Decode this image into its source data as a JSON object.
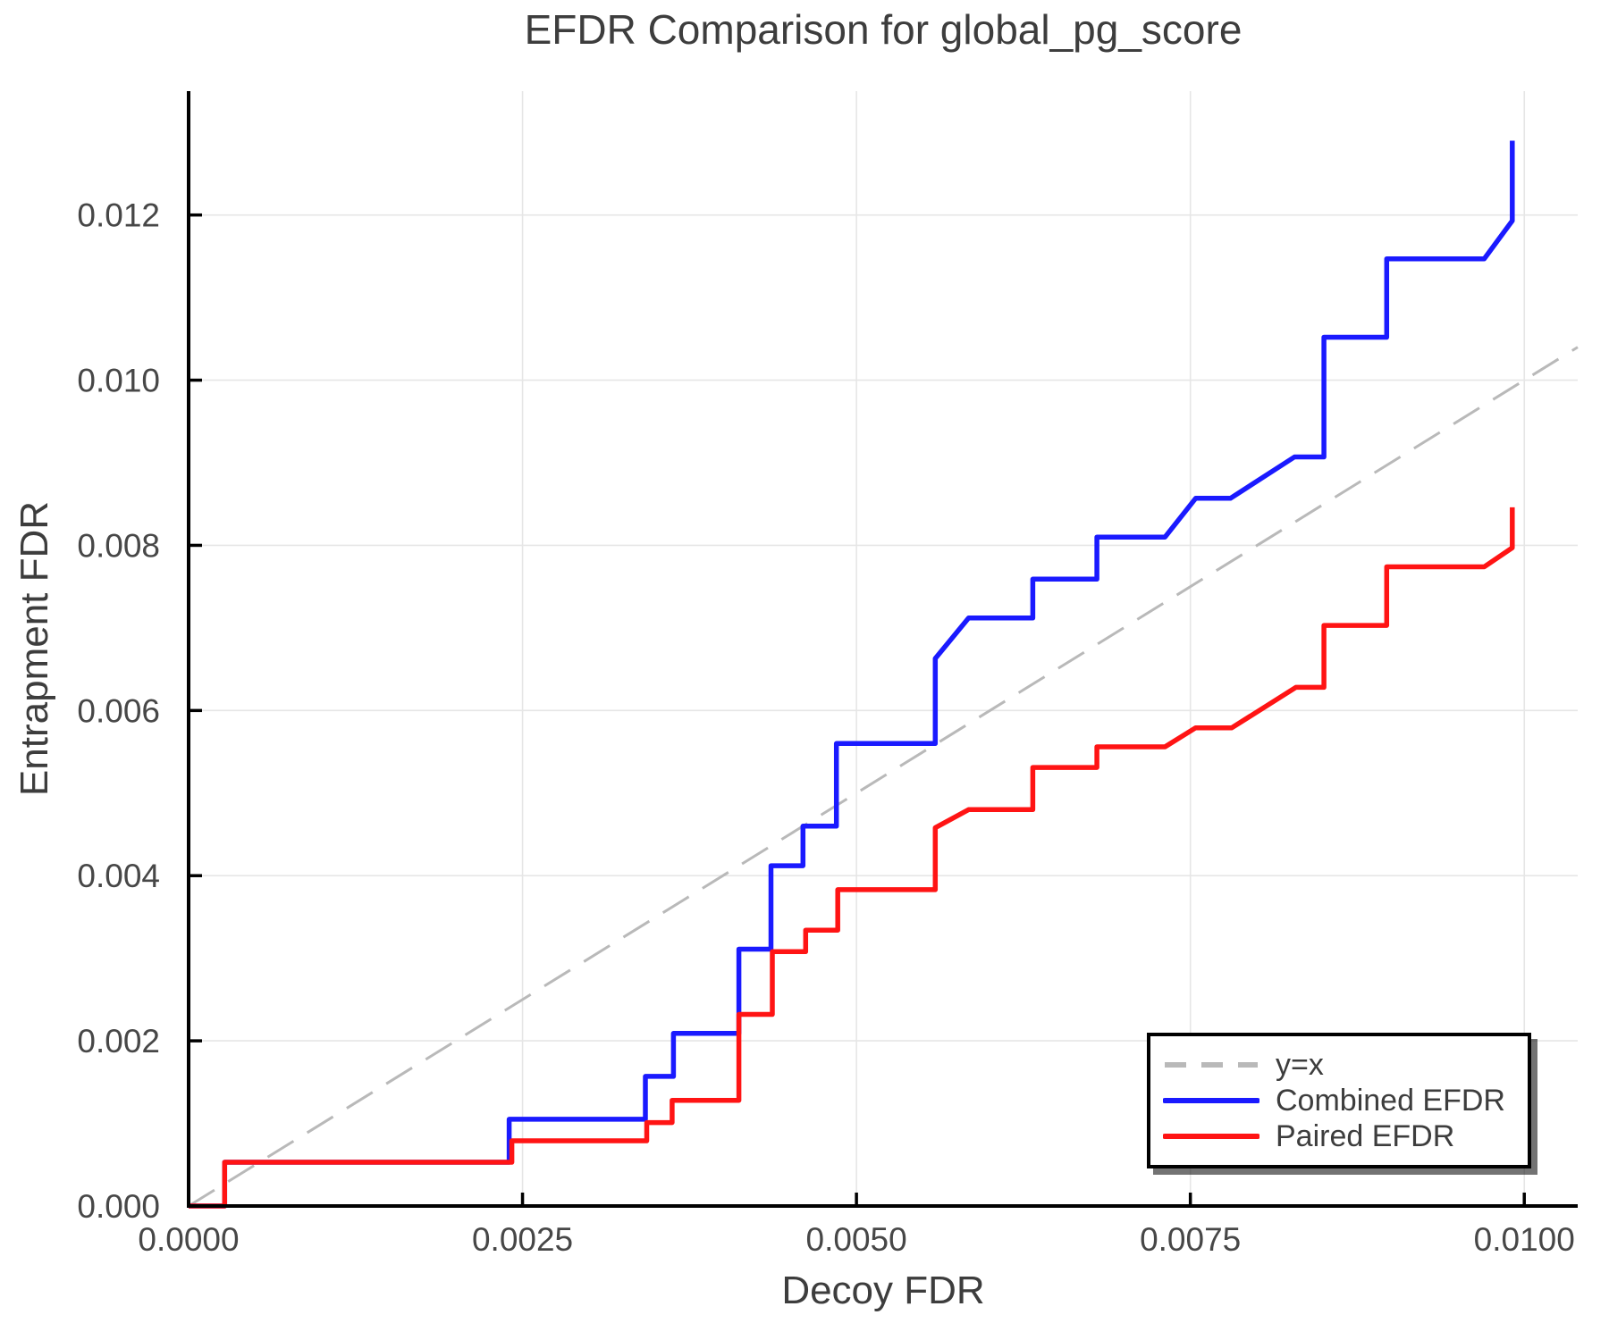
{
  "title": "EFDR Comparison for global_pg_score",
  "axes": {
    "x_label": "Decoy FDR",
    "y_label": "Entrapment FDR",
    "x_ticks": [
      {
        "v": 0.0,
        "label": "0.0000"
      },
      {
        "v": 0.0025,
        "label": "0.0025"
      },
      {
        "v": 0.005,
        "label": "0.0050"
      },
      {
        "v": 0.0075,
        "label": "0.0075"
      },
      {
        "v": 0.01,
        "label": "0.0100"
      }
    ],
    "y_ticks": [
      {
        "v": 0.0,
        "label": "0.000"
      },
      {
        "v": 0.002,
        "label": "0.002"
      },
      {
        "v": 0.004,
        "label": "0.004"
      },
      {
        "v": 0.006,
        "label": "0.006"
      },
      {
        "v": 0.008,
        "label": "0.008"
      },
      {
        "v": 0.01,
        "label": "0.010"
      },
      {
        "v": 0.012,
        "label": "0.012"
      }
    ]
  },
  "colors": {
    "grid": "#e6e6e6",
    "spine": "#000000",
    "title_text": "#3d3d3d",
    "tick_text": "#474747",
    "identity": "#b9b9b9",
    "combined": "#1a1aff",
    "paired": "#ff1414"
  },
  "legend": {
    "entries": [
      {
        "label": "y=x",
        "color": "#b9b9b9",
        "dashed": true
      },
      {
        "label": "Combined EFDR",
        "color": "#1a1aff",
        "dashed": false
      },
      {
        "label": "Paired EFDR",
        "color": "#ff1414",
        "dashed": false
      }
    ],
    "position": "lower right"
  },
  "chart_data": {
    "type": "line",
    "title": "EFDR Comparison for global_pg_score",
    "xlabel": "Decoy FDR",
    "ylabel": "Entrapment FDR",
    "xlim": [
      0.0,
      0.0104
    ],
    "ylim": [
      0.0,
      0.0135
    ],
    "grid": true,
    "legend_position": "lower right",
    "series": [
      {
        "name": "y=x",
        "style": "dashed",
        "color": "#b9b9b9",
        "width": 3,
        "points": [
          [
            0.0,
            0.0
          ],
          [
            0.0104,
            0.0104
          ]
        ]
      },
      {
        "name": "Combined EFDR",
        "style": "solid",
        "color": "#1a1aff",
        "width": 5.5,
        "points": [
          [
            0.0,
            0.0
          ],
          [
            0.00027,
            0.0
          ],
          [
            0.00027,
            0.00053
          ],
          [
            0.0024,
            0.00053
          ],
          [
            0.0024,
            0.00105
          ],
          [
            0.00342,
            0.00105
          ],
          [
            0.00342,
            0.00157
          ],
          [
            0.00363,
            0.00157
          ],
          [
            0.00363,
            0.00209
          ],
          [
            0.00412,
            0.00209
          ],
          [
            0.00412,
            0.00311
          ],
          [
            0.00436,
            0.00311
          ],
          [
            0.00436,
            0.00412
          ],
          [
            0.0046,
            0.00412
          ],
          [
            0.0046,
            0.0046
          ],
          [
            0.00485,
            0.0046
          ],
          [
            0.00485,
            0.0056
          ],
          [
            0.00559,
            0.0056
          ],
          [
            0.00559,
            0.00663
          ],
          [
            0.00584,
            0.00712
          ],
          [
            0.00632,
            0.00712
          ],
          [
            0.00632,
            0.00759
          ],
          [
            0.0068,
            0.00759
          ],
          [
            0.0068,
            0.0081
          ],
          [
            0.00731,
            0.0081
          ],
          [
            0.00754,
            0.00857
          ],
          [
            0.0078,
            0.00857
          ],
          [
            0.00828,
            0.00907
          ],
          [
            0.0085,
            0.00907
          ],
          [
            0.0085,
            0.01052
          ],
          [
            0.00897,
            0.01052
          ],
          [
            0.00897,
            0.01147
          ],
          [
            0.0097,
            0.01147
          ],
          [
            0.00991,
            0.01193
          ],
          [
            0.00991,
            0.0129
          ]
        ]
      },
      {
        "name": "Paired EFDR",
        "style": "solid",
        "color": "#ff1414",
        "width": 5.5,
        "points": [
          [
            0.0,
            0.0
          ],
          [
            0.00027,
            0.0
          ],
          [
            0.00027,
            0.00053
          ],
          [
            0.00242,
            0.00053
          ],
          [
            0.00242,
            0.00079
          ],
          [
            0.00343,
            0.00079
          ],
          [
            0.00343,
            0.00101
          ],
          [
            0.00362,
            0.00101
          ],
          [
            0.00362,
            0.00128
          ],
          [
            0.00412,
            0.00128
          ],
          [
            0.00412,
            0.00232
          ],
          [
            0.00437,
            0.00232
          ],
          [
            0.00437,
            0.00308
          ],
          [
            0.00462,
            0.00308
          ],
          [
            0.00462,
            0.00334
          ],
          [
            0.00486,
            0.00334
          ],
          [
            0.00486,
            0.00383
          ],
          [
            0.00559,
            0.00383
          ],
          [
            0.00559,
            0.00458
          ],
          [
            0.00584,
            0.0048
          ],
          [
            0.00632,
            0.0048
          ],
          [
            0.00632,
            0.00531
          ],
          [
            0.0068,
            0.00531
          ],
          [
            0.0068,
            0.00556
          ],
          [
            0.00731,
            0.00556
          ],
          [
            0.00754,
            0.00579
          ],
          [
            0.00781,
            0.00579
          ],
          [
            0.00829,
            0.00628
          ],
          [
            0.0085,
            0.00628
          ],
          [
            0.0085,
            0.00703
          ],
          [
            0.00897,
            0.00703
          ],
          [
            0.00897,
            0.00774
          ],
          [
            0.0097,
            0.00774
          ],
          [
            0.00991,
            0.00797
          ],
          [
            0.00991,
            0.00846
          ]
        ]
      }
    ]
  }
}
